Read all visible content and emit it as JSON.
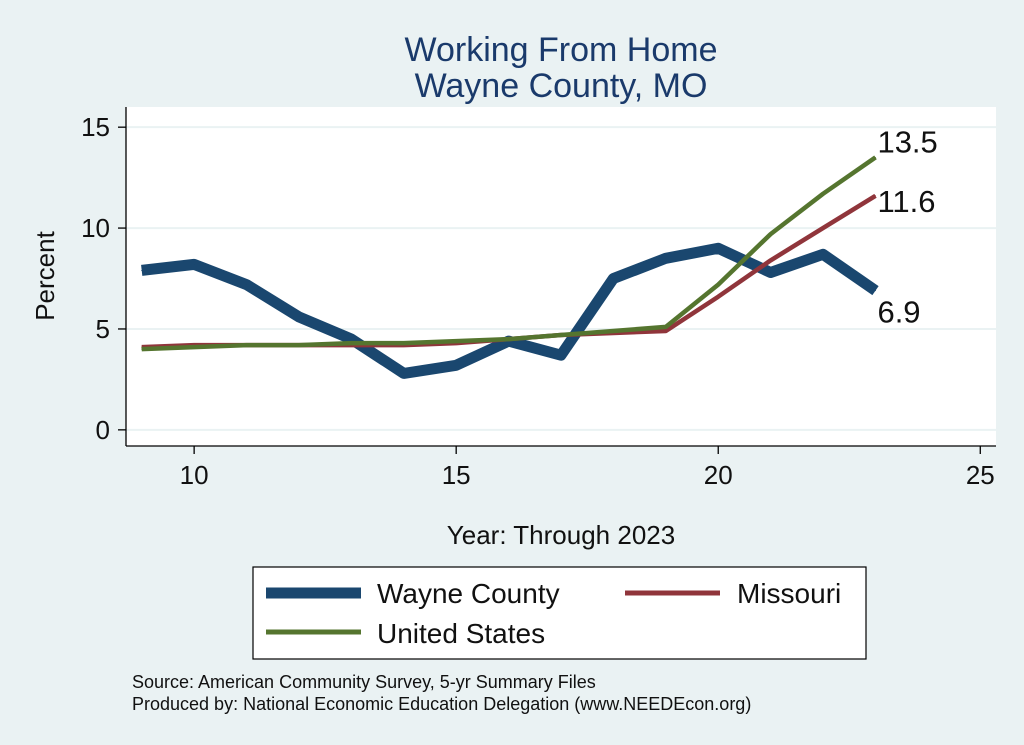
{
  "chart_data": {
    "type": "line",
    "title": [
      "Working From Home",
      "Wayne County, MO"
    ],
    "xlabel": "Year: Through 2023",
    "ylabel": "Percent",
    "xlim": [
      8.7,
      25.3
    ],
    "ylim": [
      -0.8,
      16
    ],
    "xticks": [
      10,
      15,
      20,
      25
    ],
    "yticks": [
      0,
      5,
      10,
      15
    ],
    "grid": true,
    "legend_position": "bottom",
    "x": [
      9,
      10,
      11,
      12,
      13,
      14,
      15,
      16,
      17,
      18,
      19,
      20,
      21,
      22,
      23
    ],
    "series": [
      {
        "name": "Wayne County",
        "color": "#1a476f",
        "values": [
          7.9,
          8.2,
          7.2,
          5.6,
          4.5,
          2.8,
          3.2,
          4.4,
          3.7,
          7.5,
          8.5,
          9.0,
          7.8,
          8.7,
          6.9
        ],
        "end_label": "6.9"
      },
      {
        "name": "Missouri",
        "color": "#90353b",
        "values": [
          4.1,
          4.2,
          4.2,
          4.2,
          4.2,
          4.2,
          4.3,
          4.5,
          4.7,
          4.8,
          4.9,
          6.6,
          8.4,
          10.0,
          11.6
        ],
        "end_label": "11.6"
      },
      {
        "name": "United States",
        "color": "#55752f",
        "values": [
          4.0,
          4.1,
          4.2,
          4.2,
          4.3,
          4.3,
          4.4,
          4.5,
          4.7,
          4.9,
          5.1,
          7.2,
          9.7,
          11.7,
          13.5
        ],
        "end_label": "13.5"
      }
    ]
  },
  "source_note": "Source: American Community Survey, 5-yr Summary Files",
  "produced_note": "Produced by: National Economic Education Delegation (www.NEEDEcon.org)"
}
